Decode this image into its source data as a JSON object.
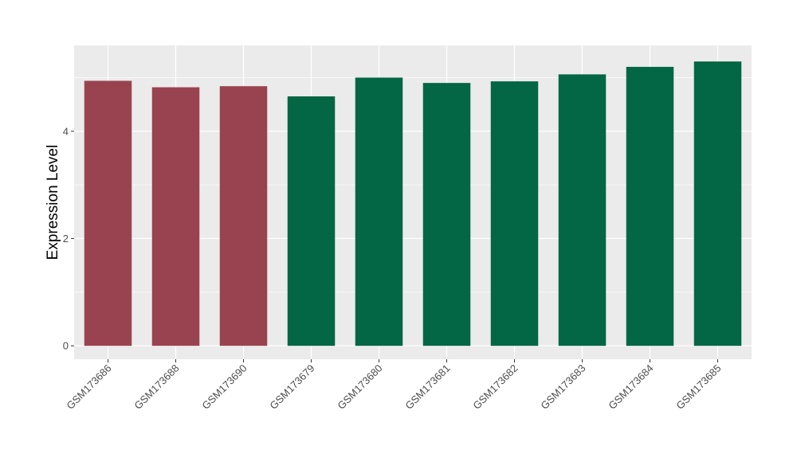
{
  "chart_data": {
    "type": "bar",
    "title": "",
    "xlabel": "",
    "ylabel": "Expression Level",
    "categories": [
      "GSM173686",
      "GSM173688",
      "GSM173690",
      "GSM173679",
      "GSM173680",
      "GSM173681",
      "GSM173682",
      "GSM173683",
      "GSM173684",
      "GSM173685"
    ],
    "values": [
      4.94,
      4.82,
      4.84,
      4.65,
      5.0,
      4.9,
      4.93,
      5.06,
      5.2,
      5.3
    ],
    "groups": [
      "group1",
      "group1",
      "group1",
      "group2",
      "group2",
      "group2",
      "group2",
      "group2",
      "group2",
      "group2"
    ],
    "group_colors": {
      "group1": "#9a4350",
      "group2": "#036644"
    },
    "y_ticks": [
      0,
      2,
      4
    ],
    "ylim": [
      -0.25,
      5.6
    ],
    "grid": true,
    "panel_background": "#ebebeb",
    "grid_color": "#ffffff"
  }
}
